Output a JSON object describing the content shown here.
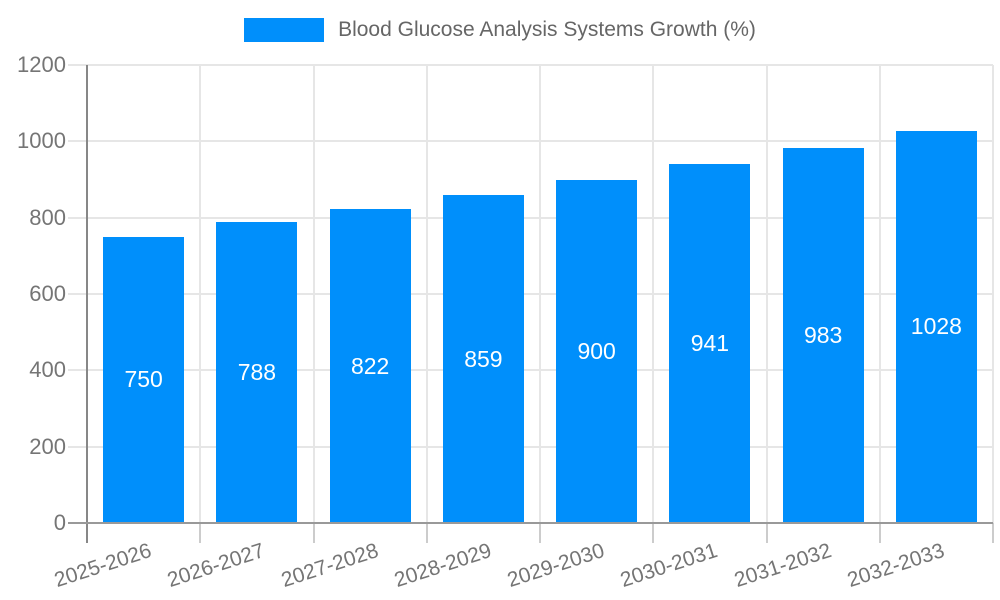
{
  "chart_data": {
    "type": "bar",
    "title": "Blood Glucose Analysis Systems Growth (%)",
    "categories": [
      "2025-2026",
      "2026-2027",
      "2027-2028",
      "2028-2029",
      "2029-2030",
      "2030-2031",
      "2031-2032",
      "2032-2033"
    ],
    "values": [
      750,
      788,
      822,
      859,
      900,
      941,
      983,
      1028
    ],
    "xlabel": "",
    "ylabel": "",
    "ylim": [
      0,
      1200
    ],
    "yticks": [
      0,
      200,
      400,
      600,
      800,
      1000,
      1200
    ],
    "grid": true,
    "legend_position": "top",
    "bar_color": "#008FFB",
    "bar_label_color": "#ffffff",
    "axis_text_color": "#757575",
    "legend_text_color": "#666666",
    "gridline_color": "#e6e6e6",
    "axis_line_color": "#878787",
    "baseline_color": "#999999",
    "tick_color": "#cccccc",
    "background_color": "#ffffff"
  }
}
